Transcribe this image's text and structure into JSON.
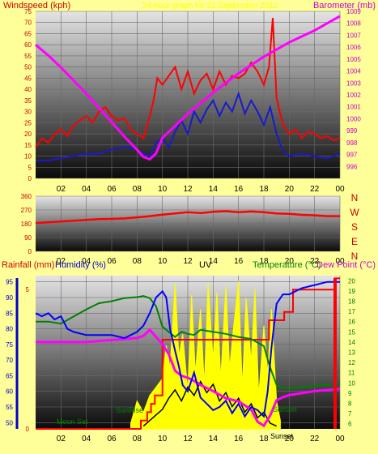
{
  "colors": {
    "background": "#ffff99",
    "windspeed": "#ff0000",
    "gust_avg": "#1a1acc",
    "barometer": "#ff00ff",
    "direction": "#ff0000",
    "rainfall": "#ff0000",
    "humidity": "#0000ff",
    "uv": "#ffff00",
    "temperature": "#008000",
    "dewpoint": "#cc00cc",
    "axis_blue": "#0000cc"
  },
  "chart_data": [
    {
      "type": "line",
      "title": "24 hour graph for 21 September 2012",
      "left_axis_title": "Windspeed (kph)",
      "right_axis_title": "Barometer (mb)",
      "ylim": [
        0,
        75
      ],
      "y_ticks": [
        "0",
        "5",
        "10",
        "15",
        "20",
        "25",
        "30",
        "35",
        "40",
        "45",
        "50",
        "55",
        "60",
        "65",
        "70",
        "75"
      ],
      "y2lim": [
        995,
        1009
      ],
      "y2_ticks": [
        "996",
        "997",
        "998",
        "999",
        "1000",
        "1001",
        "1002",
        "1003",
        "1004",
        "1005",
        "1006",
        "1007",
        "1008",
        "1009"
      ],
      "x_ticks": [
        "02",
        "04",
        "06",
        "08",
        "10",
        "12",
        "14",
        "16",
        "18",
        "20",
        "22",
        "00"
      ],
      "series": [
        {
          "key": "gust",
          "x": [
            0,
            0.5,
            1,
            1.5,
            2,
            2.5,
            3,
            3.5,
            4,
            4.5,
            5,
            5.5,
            6,
            6.5,
            7,
            7.5,
            8,
            8.5,
            9,
            9.3,
            9.6,
            10,
            10.5,
            11,
            11.5,
            12,
            12.5,
            13,
            13.5,
            14,
            14.5,
            15,
            15.5,
            16,
            16.5,
            17,
            17.5,
            18,
            18.4,
            18.7,
            19,
            19.5,
            20,
            20.5,
            21,
            21.5,
            22,
            22.5,
            23,
            23.5,
            24
          ],
          "y": [
            14,
            18,
            16,
            20,
            22,
            19,
            24,
            26,
            28,
            25,
            30,
            32,
            28,
            26,
            27,
            22,
            20,
            18,
            28,
            35,
            45,
            42,
            46,
            50,
            40,
            48,
            38,
            44,
            47,
            40,
            48,
            42,
            46,
            45,
            47,
            52,
            48,
            42,
            50,
            72,
            36,
            24,
            20,
            22,
            18,
            21,
            20,
            18,
            19,
            17,
            18
          ]
        },
        {
          "key": "avg",
          "x": [
            0,
            1,
            2,
            3,
            4,
            5,
            6,
            7,
            8,
            8.5,
            9,
            9.5,
            10,
            10.5,
            11,
            11.5,
            12,
            12.5,
            13,
            13.5,
            14,
            14.5,
            15,
            15.5,
            16,
            16.5,
            17,
            17.5,
            18,
            18.5,
            19,
            19.5,
            20,
            21,
            22,
            23,
            24
          ],
          "y": [
            8,
            8,
            9,
            10,
            11,
            11,
            13,
            14,
            13,
            11,
            10,
            16,
            18,
            14,
            21,
            26,
            20,
            30,
            25,
            31,
            35,
            28,
            34,
            30,
            38,
            29,
            35,
            30,
            24,
            32,
            20,
            12,
            10,
            11,
            10,
            9,
            11
          ]
        },
        {
          "key": "baro",
          "x": [
            0,
            1,
            2,
            3,
            4,
            5,
            6,
            7,
            8,
            8.5,
            9,
            9.5,
            10,
            11,
            12,
            13,
            14,
            15,
            16,
            17,
            18,
            19,
            20,
            21,
            22,
            23,
            24
          ],
          "y": [
            1006.2,
            1005.3,
            1004.3,
            1003.2,
            1002.1,
            1000.9,
            999.7,
            998.5,
            997.4,
            996.8,
            996.6,
            997.1,
            998.4,
            999.4,
            1000.4,
            1001.3,
            1002.2,
            1003.0,
            1003.8,
            1004.5,
            1005.2,
            1005.8,
            1006.4,
            1006.9,
            1007.4,
            1008.0,
            1008.6
          ]
        }
      ]
    },
    {
      "type": "line",
      "ylim": [
        0,
        360
      ],
      "y_ticks": [
        "0",
        "90",
        "180",
        "270",
        "360"
      ],
      "right_labels": [
        "N",
        "W",
        "S",
        "E",
        "N"
      ],
      "x_ticks": [
        "02",
        "04",
        "06",
        "08",
        "10",
        "12",
        "14",
        "16",
        "18",
        "20",
        "22",
        "00"
      ],
      "series": [
        {
          "key": "dir",
          "x": [
            0,
            1,
            2,
            3,
            4,
            5,
            6,
            7,
            8,
            9,
            10,
            11,
            12,
            13,
            14,
            15,
            16,
            17,
            18,
            19,
            20,
            21,
            22,
            23,
            24
          ],
          "y": [
            185,
            190,
            195,
            200,
            205,
            210,
            212,
            215,
            222,
            230,
            240,
            248,
            255,
            250,
            258,
            262,
            255,
            260,
            255,
            248,
            245,
            238,
            235,
            230,
            230
          ]
        }
      ]
    },
    {
      "type": "line",
      "labels": {
        "rainfall": "Rainfall (mm)",
        "humidity": "Humidity (%)",
        "uv": "UV",
        "temperature": "Temperature (°C)",
        "dewpoint": "Dew Point (°C)"
      },
      "rain_lim": [
        0,
        5.5
      ],
      "rain_ticks": [
        "0",
        "5"
      ],
      "humidity_lim": [
        48,
        97
      ],
      "humidity_ticks": [
        "50",
        "55",
        "60",
        "65",
        "70",
        "75",
        "80",
        "85",
        "90",
        "95"
      ],
      "temp_lim": [
        5.5,
        20.5
      ],
      "temp_ticks": [
        "6",
        "7",
        "8",
        "9",
        "10",
        "11",
        "12",
        "13",
        "14",
        "15",
        "16",
        "17",
        "18",
        "19",
        "20"
      ],
      "x_ticks": [
        "02",
        "04",
        "06",
        "08",
        "10",
        "12",
        "14",
        "16",
        "18",
        "20",
        "22",
        "00"
      ],
      "annotations": [
        "Moon Set",
        "SunRise",
        "SunSet",
        "Sunset"
      ],
      "series": [
        {
          "key": "humidity",
          "x": [
            0,
            0.5,
            1,
            1.5,
            2,
            2.5,
            3,
            4,
            5,
            6,
            7,
            8,
            8.5,
            9,
            9.5,
            10,
            10.3,
            10.6,
            11,
            11.3,
            11.6,
            12,
            12.5,
            13,
            13.5,
            14,
            14.5,
            15,
            15.5,
            16,
            16.5,
            17,
            17.5,
            18,
            18.3,
            18.6,
            19,
            19.5,
            20,
            21,
            22,
            23,
            23.5,
            24
          ],
          "y": [
            85,
            84,
            85,
            83,
            84,
            80,
            79,
            78,
            78,
            78,
            77,
            79,
            81,
            85,
            90,
            92,
            90,
            80,
            73,
            68,
            62,
            60,
            66,
            58,
            56,
            54,
            55,
            57,
            53,
            56,
            52,
            55,
            54,
            52,
            60,
            74,
            88,
            91,
            91,
            93,
            94,
            95,
            95,
            95
          ]
        },
        {
          "key": "temp",
          "x": [
            0,
            1,
            2,
            3,
            4,
            5,
            6,
            7,
            8,
            8.5,
            9,
            9.5,
            10,
            10.5,
            11,
            11.5,
            12,
            12.5,
            13,
            14,
            15,
            16,
            17,
            18,
            18.5,
            19,
            19.5,
            20,
            21,
            22,
            23,
            24
          ],
          "y": [
            16.0,
            16.0,
            15.8,
            16.5,
            17.2,
            17.8,
            18.0,
            18.3,
            18.4,
            18.5,
            18.3,
            17.5,
            15.5,
            15.0,
            14.5,
            15.0,
            14.8,
            14.7,
            15.2,
            15.0,
            14.8,
            14.5,
            14.3,
            13.6,
            11.5,
            9.8,
            9.5,
            9.5,
            9.6,
            9.7,
            9.8,
            9.9
          ]
        },
        {
          "key": "dew",
          "x": [
            0,
            1,
            2,
            3,
            4,
            5,
            6,
            7,
            8,
            8.5,
            9,
            9.5,
            10,
            10.5,
            11,
            11.5,
            12,
            12.5,
            13,
            14,
            15,
            16,
            17,
            17.5,
            18,
            18.5,
            19,
            19.5,
            20,
            21,
            22,
            23,
            24
          ],
          "y": [
            14.0,
            14.0,
            14.0,
            14.0,
            14.0,
            14.1,
            14.2,
            14.3,
            14.4,
            14.6,
            15.2,
            14.5,
            13.8,
            12.8,
            11.2,
            10.7,
            10.5,
            10.2,
            9.8,
            9.2,
            8.5,
            8.2,
            7.4,
            6.2,
            5.8,
            6.8,
            8.3,
            8.6,
            8.8,
            9.0,
            9.2,
            9.3,
            9.4
          ]
        },
        {
          "key": "uv",
          "x": [
            7.5,
            8,
            8.5,
            9,
            9.5,
            10,
            10.3,
            10.6,
            11,
            11.3,
            11.6,
            12,
            12.3,
            12.6,
            13,
            13.3,
            13.6,
            14,
            14.3,
            14.6,
            15,
            15.3,
            15.6,
            16,
            16.3,
            16.6,
            17,
            17.3,
            17.6,
            18,
            18.3,
            18.6,
            19,
            19.3
          ],
          "y": [
            0.2,
            1.0,
            0.6,
            1.2,
            1.5,
            1.8,
            3.0,
            2.2,
            5.2,
            2.6,
            3.4,
            1.4,
            4.8,
            2.0,
            4.3,
            1.6,
            5.2,
            2.5,
            4.9,
            1.8,
            5.1,
            2.2,
            3.6,
            5.3,
            1.5,
            4.7,
            2.4,
            5.0,
            1.2,
            3.7,
            2.0,
            4.3,
            1.0,
            0.3
          ]
        },
        {
          "key": "rain",
          "x": [
            0,
            7.8,
            8.3,
            8.3,
            8.8,
            8.8,
            9.1,
            9.1,
            9.4,
            9.4,
            10.0,
            10.0,
            18.4,
            18.4,
            19.6,
            19.6,
            20.3,
            20.3,
            23.6,
            23.6,
            24
          ],
          "y": [
            0,
            0,
            0,
            0.3,
            0.3,
            0.6,
            0.6,
            0.9,
            0.9,
            1.2,
            1.2,
            3.2,
            3.2,
            3.9,
            3.9,
            4.2,
            4.2,
            5.0,
            5.0,
            5.4,
            5.4
          ]
        },
        {
          "key": "black",
          "x": [
            8.5,
            9,
            9.5,
            10,
            10.5,
            11,
            11.5,
            12,
            12.5,
            13,
            13.5,
            14,
            14.5,
            15,
            15.5,
            16,
            16.5,
            17,
            17.5,
            18,
            18.5,
            19
          ],
          "y": [
            0.1,
            0.3,
            0.5,
            0.7,
            1.1,
            1.4,
            1.0,
            1.5,
            1.2,
            1.7,
            1.3,
            1.6,
            1.0,
            1.3,
            0.8,
            1.1,
            0.6,
            0.9,
            0.4,
            0.6,
            0.2,
            0.1
          ]
        }
      ]
    }
  ]
}
